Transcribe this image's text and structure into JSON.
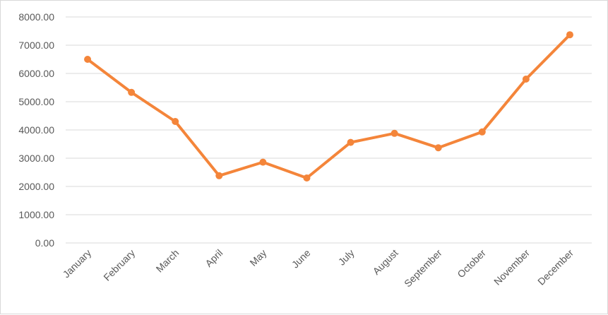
{
  "chart_data": {
    "type": "line",
    "title": "",
    "xlabel": "",
    "ylabel": "",
    "categories": [
      "January",
      "February",
      "March",
      "April",
      "May",
      "June",
      "July",
      "August",
      "September",
      "October",
      "November",
      "December"
    ],
    "series": [
      {
        "values": [
          6500,
          5330,
          4300,
          2380,
          2860,
          2300,
          3560,
          3880,
          3370,
          3930,
          5800,
          7370
        ]
      }
    ],
    "ylim": [
      0,
      8000
    ],
    "y_ticks": [
      "0.00",
      "1000.00",
      "2000.00",
      "3000.00",
      "4000.00",
      "5000.00",
      "6000.00",
      "7000.00",
      "8000.00"
    ],
    "y_tick_values": [
      0,
      1000,
      2000,
      3000,
      4000,
      5000,
      6000,
      7000,
      8000
    ],
    "grid": true,
    "legend": "none",
    "colors": {
      "series": "#f4853a",
      "grid": "#d9d9d9",
      "text": "#595959"
    }
  }
}
